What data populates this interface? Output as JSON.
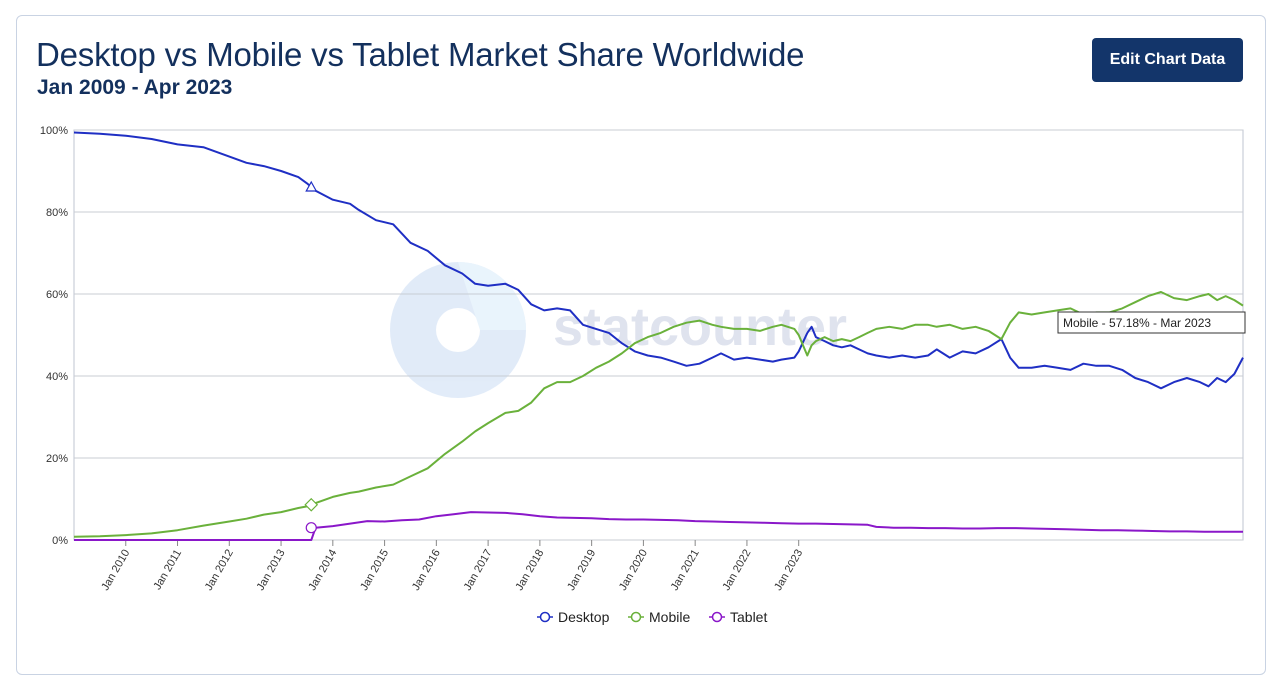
{
  "header": {
    "title": "Desktop vs Mobile vs Tablet Market Share Worldwide",
    "subtitle": "Jan 2009 - Apr 2023",
    "edit_button_label": "Edit Chart Data"
  },
  "watermark": {
    "text": "statcounter"
  },
  "tooltip": {
    "text": "Mobile - 57.18% - Mar 2023"
  },
  "colors": {
    "desktop": "#1f2fc4",
    "mobile": "#6ab13b",
    "tablet": "#8a17c9",
    "title": "#13305d",
    "button": "#13356a"
  },
  "chart_data": {
    "type": "line",
    "title": "Desktop vs Mobile vs Tablet Market Share Worldwide",
    "subtitle": "Jan 2009 - Apr 2023",
    "xlabel": "",
    "ylabel": "",
    "ylim": [
      0,
      100
    ],
    "y_tick_labels": [
      "0%",
      "20%",
      "40%",
      "60%",
      "80%",
      "100%"
    ],
    "x_range": [
      "Jan 2009",
      "Apr 2023"
    ],
    "x_tick_labels": [
      "Jan 2010",
      "Jan 2011",
      "Jan 2012",
      "Jan 2013",
      "Jan 2014",
      "Jan 2015",
      "Jan 2016",
      "Jan 2017",
      "Jan 2018",
      "Jan 2019",
      "Jan 2020",
      "Jan 2021",
      "Jan 2022",
      "Jan 2023"
    ],
    "grid": true,
    "legend_position": "bottom-center",
    "series": [
      {
        "name": "Desktop",
        "points": [
          [
            0,
            99.4
          ],
          [
            6,
            99.1
          ],
          [
            12,
            98.6
          ],
          [
            18,
            97.8
          ],
          [
            24,
            96.5
          ],
          [
            30,
            95.8
          ],
          [
            36,
            93.5
          ],
          [
            40,
            92.0
          ],
          [
            44,
            91.2
          ],
          [
            48,
            90.0
          ],
          [
            52,
            88.5
          ],
          [
            54,
            87.0
          ],
          [
            56,
            85.2
          ],
          [
            60,
            83.0
          ],
          [
            64,
            82.0
          ],
          [
            66,
            80.5
          ],
          [
            70,
            78.0
          ],
          [
            74,
            77.0
          ],
          [
            78,
            72.5
          ],
          [
            82,
            70.5
          ],
          [
            86,
            67.0
          ],
          [
            90,
            65.0
          ],
          [
            93,
            62.5
          ],
          [
            96,
            62.0
          ],
          [
            100,
            62.5
          ],
          [
            103,
            61.0
          ],
          [
            106,
            57.5
          ],
          [
            109,
            56.0
          ],
          [
            112,
            56.5
          ],
          [
            115,
            56.0
          ],
          [
            118,
            52.5
          ],
          [
            121,
            51.5
          ],
          [
            124,
            50.5
          ],
          [
            127,
            48.0
          ],
          [
            130,
            46.0
          ],
          [
            133,
            45.0
          ],
          [
            136,
            44.5
          ],
          [
            139,
            43.5
          ],
          [
            142,
            42.5
          ],
          [
            145,
            43.0
          ],
          [
            148,
            44.5
          ],
          [
            150,
            45.5
          ],
          [
            153,
            44.0
          ],
          [
            156,
            44.5
          ],
          [
            159,
            44.0
          ],
          [
            162,
            43.5
          ],
          [
            164,
            44.0
          ],
          [
            167,
            44.5
          ],
          [
            168,
            46.0
          ],
          [
            170,
            50.5
          ],
          [
            171,
            52.0
          ],
          [
            172,
            49.5
          ],
          [
            174,
            48.5
          ],
          [
            176,
            47.5
          ],
          [
            178,
            47.0
          ],
          [
            180,
            47.5
          ],
          [
            182,
            46.5
          ],
          [
            184,
            45.5
          ],
          [
            186,
            45.0
          ],
          [
            189,
            44.5
          ],
          [
            192,
            45.0
          ],
          [
            195,
            44.5
          ],
          [
            198,
            45.0
          ],
          [
            200,
            46.5
          ],
          [
            203,
            44.5
          ],
          [
            206,
            46.0
          ],
          [
            209,
            45.5
          ],
          [
            212,
            47.0
          ],
          [
            215,
            49.0
          ],
          [
            217,
            44.5
          ],
          [
            219,
            42.0
          ],
          [
            222,
            42.0
          ],
          [
            225,
            42.5
          ],
          [
            228,
            42.0
          ],
          [
            231,
            41.5
          ],
          [
            234,
            43.0
          ],
          [
            237,
            42.5
          ],
          [
            240,
            42.5
          ],
          [
            243,
            41.5
          ],
          [
            246,
            39.5
          ],
          [
            249,
            38.5
          ],
          [
            252,
            37.0
          ],
          [
            255,
            38.5
          ],
          [
            258,
            39.5
          ],
          [
            261,
            38.5
          ],
          [
            263,
            37.5
          ],
          [
            265,
            39.5
          ],
          [
            267,
            38.5
          ],
          [
            269,
            40.5
          ],
          [
            271,
            44.5
          ]
        ]
      },
      {
        "name": "Mobile",
        "points": [
          [
            0,
            0.8
          ],
          [
            6,
            0.9
          ],
          [
            12,
            1.2
          ],
          [
            18,
            1.6
          ],
          [
            24,
            2.4
          ],
          [
            30,
            3.5
          ],
          [
            36,
            4.5
          ],
          [
            40,
            5.2
          ],
          [
            44,
            6.2
          ],
          [
            48,
            6.8
          ],
          [
            52,
            7.8
          ],
          [
            54,
            8.2
          ],
          [
            56,
            9.0
          ],
          [
            60,
            10.5
          ],
          [
            64,
            11.5
          ],
          [
            66,
            11.8
          ],
          [
            70,
            12.8
          ],
          [
            74,
            13.5
          ],
          [
            78,
            15.5
          ],
          [
            82,
            17.5
          ],
          [
            86,
            21.0
          ],
          [
            90,
            24.0
          ],
          [
            93,
            26.5
          ],
          [
            96,
            28.5
          ],
          [
            100,
            31.0
          ],
          [
            103,
            31.5
          ],
          [
            106,
            33.5
          ],
          [
            109,
            37.0
          ],
          [
            112,
            38.5
          ],
          [
            115,
            38.5
          ],
          [
            118,
            40.0
          ],
          [
            121,
            42.0
          ],
          [
            124,
            43.5
          ],
          [
            127,
            45.5
          ],
          [
            130,
            48.0
          ],
          [
            133,
            49.5
          ],
          [
            136,
            50.5
          ],
          [
            139,
            52.0
          ],
          [
            142,
            53.0
          ],
          [
            145,
            53.5
          ],
          [
            148,
            52.5
          ],
          [
            150,
            52.0
          ],
          [
            153,
            51.5
          ],
          [
            156,
            51.5
          ],
          [
            159,
            51.0
          ],
          [
            162,
            52.0
          ],
          [
            164,
            52.5
          ],
          [
            167,
            51.5
          ],
          [
            168,
            50.0
          ],
          [
            170,
            45.0
          ],
          [
            171,
            47.5
          ],
          [
            172,
            48.5
          ],
          [
            174,
            49.5
          ],
          [
            176,
            48.5
          ],
          [
            178,
            49.0
          ],
          [
            180,
            48.5
          ],
          [
            182,
            49.5
          ],
          [
            184,
            50.5
          ],
          [
            186,
            51.5
          ],
          [
            189,
            52.0
          ],
          [
            192,
            51.5
          ],
          [
            195,
            52.5
          ],
          [
            198,
            52.5
          ],
          [
            200,
            52.0
          ],
          [
            203,
            52.5
          ],
          [
            206,
            51.5
          ],
          [
            209,
            52.0
          ],
          [
            212,
            51.0
          ],
          [
            215,
            49.0
          ],
          [
            217,
            53.0
          ],
          [
            219,
            55.5
          ],
          [
            222,
            55.0
          ],
          [
            225,
            55.5
          ],
          [
            228,
            56.0
          ],
          [
            231,
            56.5
          ],
          [
            234,
            55.0
          ],
          [
            237,
            55.5
          ],
          [
            240,
            55.5
          ],
          [
            243,
            56.5
          ],
          [
            246,
            58.0
          ],
          [
            249,
            59.5
          ],
          [
            252,
            60.5
          ],
          [
            255,
            59.0
          ],
          [
            258,
            58.5
          ],
          [
            261,
            59.5
          ],
          [
            263,
            60.0
          ],
          [
            265,
            58.5
          ],
          [
            267,
            59.5
          ],
          [
            269,
            58.5
          ],
          [
            271,
            57.18
          ]
        ]
      },
      {
        "name": "Tablet",
        "points": [
          [
            0,
            0.0
          ],
          [
            20,
            0.0
          ],
          [
            40,
            0.0
          ],
          [
            55,
            0.0
          ],
          [
            56,
            3.0
          ],
          [
            60,
            3.4
          ],
          [
            64,
            4.0
          ],
          [
            68,
            4.6
          ],
          [
            72,
            4.5
          ],
          [
            76,
            4.8
          ],
          [
            80,
            5.0
          ],
          [
            84,
            5.8
          ],
          [
            88,
            6.3
          ],
          [
            92,
            6.8
          ],
          [
            96,
            6.7
          ],
          [
            100,
            6.6
          ],
          [
            104,
            6.3
          ],
          [
            108,
            5.8
          ],
          [
            112,
            5.5
          ],
          [
            116,
            5.4
          ],
          [
            120,
            5.3
          ],
          [
            124,
            5.1
          ],
          [
            128,
            5.0
          ],
          [
            132,
            5.0
          ],
          [
            136,
            4.9
          ],
          [
            140,
            4.8
          ],
          [
            144,
            4.6
          ],
          [
            148,
            4.5
          ],
          [
            152,
            4.4
          ],
          [
            156,
            4.3
          ],
          [
            160,
            4.2
          ],
          [
            164,
            4.1
          ],
          [
            168,
            4.0
          ],
          [
            172,
            4.0
          ],
          [
            176,
            3.9
          ],
          [
            180,
            3.8
          ],
          [
            184,
            3.7
          ],
          [
            186,
            3.2
          ],
          [
            190,
            3.0
          ],
          [
            194,
            3.0
          ],
          [
            198,
            2.9
          ],
          [
            202,
            2.9
          ],
          [
            206,
            2.8
          ],
          [
            210,
            2.8
          ],
          [
            214,
            2.9
          ],
          [
            218,
            2.9
          ],
          [
            222,
            2.8
          ],
          [
            226,
            2.7
          ],
          [
            230,
            2.6
          ],
          [
            234,
            2.5
          ],
          [
            238,
            2.4
          ],
          [
            242,
            2.4
          ],
          [
            246,
            2.3
          ],
          [
            250,
            2.2
          ],
          [
            254,
            2.1
          ],
          [
            258,
            2.1
          ],
          [
            262,
            2.0
          ],
          [
            266,
            2.0
          ],
          [
            271,
            2.0
          ]
        ]
      }
    ]
  }
}
